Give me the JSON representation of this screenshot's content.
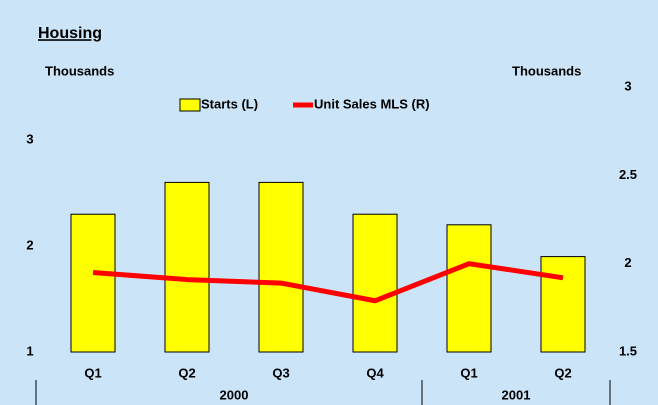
{
  "chart_data": {
    "type": "bar",
    "title": "Housing",
    "y_label": "Thousands",
    "y2_label": "Thousands",
    "categories": [
      "Q1",
      "Q2",
      "Q3",
      "Q4",
      "Q1",
      "Q2"
    ],
    "groups": [
      {
        "label": "2000",
        "span": 4
      },
      {
        "label": "2001",
        "span": 2
      }
    ],
    "series": [
      {
        "name": "Starts (L)",
        "type": "bar",
        "color": "#ffff00",
        "values": [
          2.3,
          2.6,
          2.6,
          2.3,
          2.2,
          1.9
        ]
      },
      {
        "name": "Unit Sales MLS (R)",
        "type": "line",
        "axis": "y2",
        "color": "#ff0000",
        "values": [
          1.95,
          1.91,
          1.89,
          1.79,
          2.0,
          1.92
        ]
      }
    ],
    "ylim": [
      1,
      3.5
    ],
    "yticks": [
      1,
      2,
      3
    ],
    "y2lim": [
      1.5,
      3
    ],
    "y2ticks": [
      1.5,
      2,
      2.5,
      3
    ]
  }
}
